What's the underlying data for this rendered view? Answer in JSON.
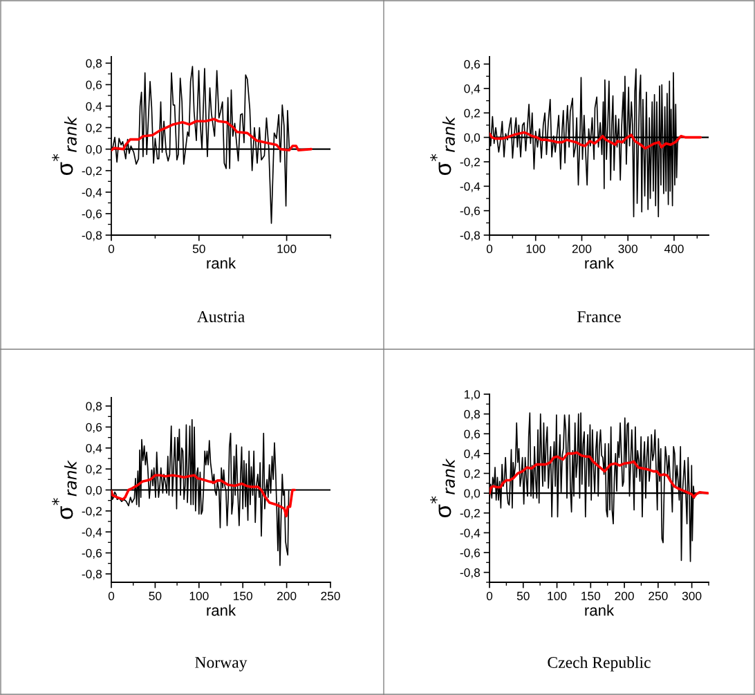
{
  "chart_data": [
    {
      "type": "line",
      "title": "Austria",
      "xlabel": "rank",
      "ylabel": "σ$^{*}$$_{rank}$",
      "xlim": [
        0,
        125
      ],
      "ylim": [
        -0.8,
        0.86
      ],
      "xticks": [
        0,
        {
          "value": 25,
          "label": null
        },
        50,
        {
          "value": 75,
          "label": null
        },
        100,
        {
          "value": 125,
          "label": null
        }
      ],
      "yticks": [
        {
          "value": -0.8,
          "label": "-0,8"
        },
        {
          "value": -0.7,
          "label": null
        },
        {
          "value": -0.6,
          "label": "-0,6"
        },
        {
          "value": -0.5,
          "label": null
        },
        {
          "value": -0.4,
          "label": "-0,4"
        },
        {
          "value": -0.3,
          "label": null
        },
        {
          "value": -0.2,
          "label": "-0,2"
        },
        {
          "value": -0.1,
          "label": null
        },
        {
          "value": 0,
          "label": "0,0"
        },
        {
          "value": 0.1,
          "label": null
        },
        {
          "value": 0.2,
          "label": "0,2"
        },
        {
          "value": 0.3,
          "label": null
        },
        {
          "value": 0.4,
          "label": "0,4"
        },
        {
          "value": 0.5,
          "label": null
        },
        {
          "value": 0.6,
          "label": "0,6"
        },
        {
          "value": 0.7,
          "label": null
        },
        {
          "value": 0.8,
          "label": "0,8"
        }
      ],
      "ref_lines": [
        {
          "axis": "y",
          "value": 0,
          "color": "#000000"
        }
      ],
      "series": [
        {
          "color": "#000000",
          "x": [
            0,
            0.9,
            2.0,
            3.2,
            4.4,
            5.6,
            6.5,
            8.2,
            9.3,
            10.2,
            11.2,
            12.8,
            14.2,
            15.5,
            16.4,
            17.2,
            18.1,
            19.2,
            20.2,
            22.1,
            23.0,
            24.1,
            25.0,
            26.3,
            27.1,
            28.2,
            29.0,
            30.0,
            31.3,
            32.4,
            33.3,
            34.3,
            35.3,
            36.1,
            37.4,
            38.2,
            39.3,
            40.3,
            41.3,
            43.5,
            44.3,
            45.2,
            46.3,
            47.2,
            48.5,
            49.9,
            50.8,
            51.7,
            53.2,
            54.1,
            54.8,
            56.2,
            57.1,
            58.9,
            60.2,
            61.4,
            62.3,
            63.4,
            64.4,
            65.5,
            66.5,
            67.5,
            68.4,
            69.3,
            70.4,
            72.4,
            73.7,
            74.7,
            75.7,
            76.6,
            77.6,
            79.0,
            80.3,
            81.6,
            82.3,
            83.2,
            84.5,
            85.6,
            87.3,
            88.5,
            89.8,
            91.3,
            92.9,
            94.2,
            95.5,
            96.4,
            97.5,
            98.5,
            99.6,
            100.5,
            101.5
          ],
          "values": [
            -0.02,
            0.02,
            0.11,
            -0.12,
            0.1,
            0.04,
            0.07,
            -0.09,
            0.09,
            -0.04,
            0.03,
            -0.03,
            -0.14,
            -0.09,
            0.4,
            0.53,
            -0.07,
            0.71,
            -0.05,
            0.63,
            0.39,
            -0.13,
            0.1,
            -0.09,
            -0.09,
            0.44,
            -0.03,
            0.26,
            -0.03,
            -0.11,
            -0.05,
            0.71,
            0.41,
            0.41,
            -0.1,
            -0.05,
            0.66,
            0.44,
            -0.14,
            0.16,
            0.12,
            0.63,
            0.77,
            0.35,
            0.08,
            0.73,
            0.22,
            0.0,
            0.75,
            0.22,
            -0.07,
            0.57,
            0.33,
            0.12,
            0.73,
            0.29,
            0.35,
            0.44,
            -0.13,
            -0.18,
            0.48,
            -0.18,
            0.55,
            0.12,
            0.24,
            -0.11,
            0.32,
            0.33,
            0.06,
            0.69,
            0.65,
            0.37,
            -0.2,
            0.2,
            0.07,
            -0.13,
            0.2,
            -0.1,
            -0.06,
            0.29,
            0.01,
            -0.69,
            0.15,
            0.1,
            0.32,
            -0.12,
            0.41,
            0.22,
            -0.53,
            0.36,
            0.0
          ]
        },
        {
          "color": "#ff0000",
          "x": [
            0,
            1.6,
            6.9,
            8.2,
            10.8,
            15.5,
            18.1,
            23.4,
            27.4,
            31.3,
            35.3,
            40.6,
            44.6,
            48.5,
            53.8,
            58.5,
            61.1,
            65.7,
            69.7,
            71.7,
            77.6,
            82.9,
            88.2,
            94.2,
            96.4,
            101.5,
            103.4,
            105.4,
            106.7,
            114.0
          ],
          "values": [
            -0.01,
            0.01,
            0.0,
            0.04,
            0.09,
            0.09,
            0.12,
            0.13,
            0.17,
            0.2,
            0.23,
            0.25,
            0.23,
            0.26,
            0.26,
            0.28,
            0.26,
            0.25,
            0.2,
            0.16,
            0.15,
            0.08,
            0.06,
            0.04,
            0.0,
            -0.01,
            0.03,
            0.03,
            -0.01,
            0.0
          ]
        }
      ]
    },
    {
      "type": "line",
      "title": "France",
      "xlabel": "rank",
      "ylabel": "σ$^{*}$$_{rank}$",
      "xlim": [
        0,
        475
      ],
      "ylim": [
        -0.8,
        0.66
      ],
      "xticks": [
        0,
        {
          "value": 50,
          "label": null
        },
        100,
        {
          "value": 150,
          "label": null
        },
        200,
        {
          "value": 250,
          "label": null
        },
        300,
        {
          "value": 350,
          "label": null
        },
        400,
        {
          "value": 450,
          "label": null
        }
      ],
      "yticks": [
        {
          "value": -0.8,
          "label": "-0,8"
        },
        {
          "value": -0.7,
          "label": null
        },
        {
          "value": -0.6,
          "label": "-0,6"
        },
        {
          "value": -0.5,
          "label": null
        },
        {
          "value": -0.4,
          "label": "-0,4"
        },
        {
          "value": -0.3,
          "label": null
        },
        {
          "value": -0.2,
          "label": "-0,2"
        },
        {
          "value": -0.1,
          "label": null
        },
        {
          "value": 0,
          "label": "0,0"
        },
        {
          "value": 0.1,
          "label": null
        },
        {
          "value": 0.2,
          "label": "0,2"
        },
        {
          "value": 0.3,
          "label": null
        },
        {
          "value": 0.4,
          "label": "0,4"
        },
        {
          "value": 0.5,
          "label": null
        },
        {
          "value": 0.6,
          "label": "0,6"
        }
      ],
      "ref_lines": [
        {
          "axis": "y",
          "value": 0,
          "color": "#000000"
        }
      ],
      "series": [
        {
          "color": "#000000",
          "x": [
            0,
            2.5,
            6.5,
            10,
            13.5,
            16.5,
            20,
            23.5,
            27.5,
            31.5,
            35,
            39,
            43.5,
            46.5,
            50,
            53.5,
            57.5,
            60.5,
            63.5,
            67.5,
            71.5,
            75,
            78.5,
            81.5,
            85.5,
            89,
            92.5,
            96.5,
            100,
            104,
            108.5,
            112.5,
            116.5,
            120,
            123.5,
            127.5,
            131.5,
            135,
            139,
            142.5,
            146.5,
            150,
            154,
            157.5,
            160,
            163.5,
            166.5,
            169,
            172.5,
            175,
            180,
            182.5,
            186.5,
            189,
            192.5,
            196.5,
            198.5,
            201.5,
            205,
            208.5,
            211.5,
            215,
            218.5,
            222.5,
            226.5,
            228.5,
            232.5,
            236,
            240,
            243.5,
            246.5,
            248.5,
            250,
            253.5,
            256.5,
            259,
            262.5,
            265,
            267.5,
            270,
            273.5,
            276.5,
            280,
            283.5,
            286.5,
            290,
            292.5,
            293.5,
            296.5,
            301.5,
            303.5,
            307.5,
            310,
            312.5,
            315,
            317.5,
            320,
            325,
            327.5,
            330,
            332.5,
            336.5,
            340,
            343.5,
            346.5,
            348.5,
            352.5,
            355,
            357.5,
            360,
            362.5,
            366,
            368.5,
            371.5,
            373.5,
            377.5,
            380,
            382.5,
            385,
            387.5,
            390,
            391.5,
            393.5,
            396.5,
            398.5,
            401.5,
            403.5,
            405.5,
            407.5,
            410
          ],
          "values": [
            0.02,
            -0.07,
            0.17,
            -0.05,
            0.08,
            -0.01,
            -0.12,
            -0.03,
            0.13,
            -0.16,
            0.03,
            -0.02,
            0.1,
            0.16,
            -0.17,
            0.02,
            0.16,
            -0.08,
            0.1,
            -0.16,
            0.1,
            0.12,
            -0.11,
            0.05,
            0.27,
            -0.05,
            0.2,
            -0.26,
            0.05,
            -0.08,
            0.07,
            -0.17,
            0.1,
            0.2,
            -0.14,
            0.13,
            0.31,
            -0.16,
            0.01,
            -0.12,
            0.03,
            0.18,
            -0.26,
            0.07,
            0.22,
            -0.21,
            0.1,
            0.26,
            -0.08,
            0.21,
            0.32,
            -0.16,
            -0.07,
            0.16,
            -0.39,
            0.07,
            0.49,
            -0.18,
            0.18,
            -0.14,
            -0.39,
            0.07,
            -0.07,
            0.16,
            -0.18,
            0.24,
            0.33,
            -0.08,
            0.12,
            -0.14,
            0.29,
            -0.42,
            0.47,
            -0.18,
            0.13,
            0.46,
            -0.35,
            0.1,
            0.34,
            -0.27,
            0.18,
            -0.08,
            0.15,
            -0.35,
            0.1,
            0.37,
            -0.05,
            0.5,
            -0.22,
            0.41,
            -0.07,
            0.29,
            0.1,
            -0.65,
            0.38,
            0.56,
            -0.54,
            0.34,
            0.51,
            -0.61,
            0.31,
            -0.48,
            0.37,
            -0.59,
            0.16,
            -0.5,
            0.29,
            -0.44,
            0.35,
            -0.56,
            0.29,
            -0.65,
            0.42,
            -0.39,
            0.43,
            -0.46,
            0.25,
            -0.44,
            0.36,
            -0.55,
            0.46,
            -0.44,
            0.23,
            -0.56,
            0.53,
            -0.39,
            0.27,
            -0.33,
            -0.05,
            0.0
          ]
        },
        {
          "color": "#ff0000",
          "x": [
            0,
            5,
            12.5,
            27.5,
            37.5,
            52.5,
            75,
            82.5,
            92.5,
            102.5,
            112.5,
            122.5,
            137.5,
            147.5,
            157.5,
            167.5,
            177.5,
            187.5,
            197.5,
            207.5,
            217.5,
            227.5,
            237.5,
            245,
            252.5,
            262.5,
            272.5,
            277.5,
            287.5,
            295,
            307.5,
            315,
            327.5,
            337.5,
            347.5,
            357.5,
            367.5,
            372.5,
            382.5,
            392.5,
            402.5,
            410,
            415,
            425,
            457.5
          ],
          "values": [
            0.03,
            0.0,
            -0.01,
            -0.01,
            0.0,
            0.02,
            0.04,
            0.03,
            0.01,
            0.0,
            -0.02,
            -0.02,
            -0.03,
            -0.04,
            -0.04,
            -0.02,
            -0.03,
            -0.04,
            -0.06,
            -0.07,
            -0.03,
            -0.05,
            -0.02,
            0.01,
            -0.02,
            -0.04,
            -0.06,
            -0.03,
            -0.04,
            -0.01,
            0.02,
            -0.03,
            -0.06,
            -0.09,
            -0.07,
            -0.05,
            -0.04,
            -0.08,
            -0.05,
            -0.06,
            -0.04,
            -0.01,
            0.01,
            0.0,
            0.0
          ]
        }
      ]
    },
    {
      "type": "line",
      "title": "Norway",
      "xlabel": "rank",
      "ylabel": "σ$^{*}$$_{rank}$",
      "xlim": [
        0,
        250
      ],
      "ylim": [
        -0.88,
        0.88
      ],
      "xticks": [
        0,
        {
          "value": 25,
          "label": null
        },
        50,
        {
          "value": 75,
          "label": null
        },
        100,
        {
          "value": 125,
          "label": null
        },
        150,
        {
          "value": 175,
          "label": null
        },
        200,
        {
          "value": 225,
          "label": null
        },
        250
      ],
      "yticks": [
        {
          "value": -0.8,
          "label": "-0,8"
        },
        {
          "value": -0.7,
          "label": null
        },
        {
          "value": -0.6,
          "label": "-0,6"
        },
        {
          "value": -0.5,
          "label": null
        },
        {
          "value": -0.4,
          "label": "-0,4"
        },
        {
          "value": -0.3,
          "label": null
        },
        {
          "value": -0.2,
          "label": "-0,2"
        },
        {
          "value": -0.1,
          "label": null
        },
        {
          "value": 0,
          "label": "0,0"
        },
        {
          "value": 0.1,
          "label": null
        },
        {
          "value": 0.2,
          "label": "0,2"
        },
        {
          "value": 0.3,
          "label": null
        },
        {
          "value": 0.4,
          "label": "0,4"
        },
        {
          "value": 0.5,
          "label": null
        },
        {
          "value": 0.6,
          "label": "0,6"
        },
        {
          "value": 0.7,
          "label": null
        },
        {
          "value": 0.8,
          "label": "0,8"
        }
      ],
      "ref_lines": [
        {
          "axis": "y",
          "value": 0,
          "color": "#000000"
        }
      ],
      "series": [
        {
          "color": "#000000",
          "x": [
            0,
            1.3,
            2.6,
            3.9,
            5.3,
            6.6,
            9.2,
            11.8,
            14.5,
            17.1,
            19.7,
            21.8,
            23.7,
            26.3,
            27.6,
            28.9,
            30.3,
            31.6,
            32.4,
            33.7,
            34.7,
            36.1,
            37.6,
            38.9,
            40.3,
            41.6,
            43.4,
            44.7,
            46.1,
            47.4,
            48.7,
            50.5,
            51.8,
            53.9,
            55.3,
            56.6,
            58.7,
            60.0,
            61.8,
            63.2,
            64.5,
            65.8,
            67.1,
            68.4,
            69.7,
            71.1,
            72.4,
            73.7,
            74.5,
            75.5,
            76.6,
            77.6,
            78.9,
            80.3,
            81.6,
            82.9,
            84.2,
            85.5,
            86.8,
            88.2,
            89.5,
            90.8,
            92.1,
            93.4,
            94.7,
            96.1,
            97.4,
            98.7,
            100.0,
            101.3,
            102.6,
            103.9,
            105.3,
            106.6,
            107.9,
            109.2,
            110.5,
            111.8,
            113.2,
            114.5,
            115.8,
            117.1,
            118.4,
            119.7,
            121.1,
            122.9,
            124.2,
            125.5,
            127.1,
            128.2,
            129.5,
            130.8,
            132.1,
            133.4,
            134.7,
            136.1,
            137.4,
            138.7,
            140.0,
            141.3,
            142.6,
            144.2,
            145.8,
            147.4,
            148.7,
            150.0,
            151.3,
            153.2,
            153.9,
            155.8,
            157.1,
            158.4,
            159.7,
            161.3,
            162.6,
            164.2,
            165.5,
            167.1,
            168.7,
            169.7,
            171.1,
            172.4,
            173.7,
            175.0,
            176.3,
            177.6,
            178.9,
            180.3,
            181.8,
            183.4,
            184.7,
            186.1,
            187.4,
            188.7,
            190.0,
            191.1,
            192.4,
            193.7,
            195.0,
            196.1,
            197.4,
            198.7,
            200.3,
            201.3,
            202.4
          ],
          "values": [
            -0.01,
            -0.09,
            -0.07,
            -0.02,
            -0.04,
            -0.09,
            -0.08,
            -0.11,
            -0.09,
            -0.11,
            -0.15,
            -0.07,
            -0.12,
            -0.08,
            0.11,
            -0.14,
            0.18,
            -0.16,
            0.38,
            -0.07,
            0.48,
            0.28,
            0.42,
            0.24,
            0.36,
            0.21,
            -0.08,
            0.06,
            0.19,
            0.04,
            0.21,
            -0.07,
            0.36,
            -0.07,
            0.04,
            0.21,
            -0.03,
            0.15,
            0.06,
            -0.03,
            0.32,
            -0.05,
            0.28,
            0.61,
            -0.06,
            0.21,
            0.5,
            0.15,
            -0.18,
            0.5,
            0.28,
            0.58,
            -0.05,
            0.4,
            0.37,
            -0.09,
            0.04,
            0.62,
            -0.12,
            0.21,
            0.61,
            -0.14,
            0.67,
            -0.14,
            0.6,
            -0.2,
            0.15,
            0.21,
            -0.23,
            0.17,
            -0.23,
            -0.2,
            0.02,
            0.37,
            0.24,
            0.37,
            0.24,
            0.47,
            0.26,
            0.17,
            0.06,
            0.15,
            -0.01,
            -0.05,
            0.08,
            -0.01,
            -0.36,
            0.21,
            0.02,
            0.19,
            0.04,
            -0.01,
            -0.34,
            -0.07,
            0.41,
            0.54,
            -0.23,
            -0.12,
            0.32,
            -0.05,
            0.43,
            -0.01,
            -0.34,
            0.13,
            0.41,
            -0.18,
            0.28,
            -0.16,
            0.25,
            -0.29,
            0.37,
            -0.14,
            0.22,
            -0.05,
            0.37,
            -0.31,
            0.04,
            0.15,
            -0.07,
            0.26,
            -0.44,
            -0.01,
            0.54,
            -0.18,
            -0.01,
            0.1,
            -0.07,
            0.24,
            -0.03,
            0.32,
            0.1,
            0.45,
            0.19,
            -0.18,
            -0.58,
            -0.12,
            -0.72,
            -0.25,
            0.15,
            -0.05,
            -0.01,
            -0.49,
            -0.58,
            -0.62,
            -0.01
          ]
        },
        {
          "color": "#ff0000",
          "x": [
            0,
            1.3,
            6.6,
            13.2,
            15.8,
            19.7,
            22.4,
            28.9,
            35.5,
            40.8,
            44.7,
            50.0,
            55.3,
            61.8,
            69.7,
            77.6,
            82.9,
            88.2,
            94.7,
            98.7,
            103.9,
            111.8,
            117.1,
            121.1,
            125.0,
            132.9,
            140.8,
            148.7,
            153.9,
            159.2,
            164.5,
            167.1,
            171.1,
            175.0,
            180.3,
            188.2,
            193.4,
            197.4,
            199.5,
            201.3,
            203.9,
            206.6,
            209.2
          ],
          "values": [
            -0.01,
            -0.05,
            -0.07,
            -0.09,
            -0.07,
            0.0,
            0.01,
            0.04,
            0.08,
            0.09,
            0.1,
            0.14,
            0.14,
            0.13,
            0.14,
            0.13,
            0.12,
            0.13,
            0.14,
            0.11,
            0.1,
            0.08,
            0.07,
            0.09,
            0.09,
            0.05,
            0.04,
            0.06,
            0.04,
            0.03,
            0.03,
            0.03,
            0.0,
            -0.06,
            -0.12,
            -0.14,
            -0.16,
            -0.18,
            -0.25,
            -0.16,
            -0.16,
            0.0,
            0.0
          ]
        }
      ]
    },
    {
      "type": "line",
      "title": "Czech Republic",
      "xlabel": "rank",
      "ylabel": "σ$^{*}$$_{rank}$",
      "xlim": [
        0,
        325
      ],
      "ylim": [
        -0.9,
        1.0
      ],
      "xticks": [
        0,
        {
          "value": 25,
          "label": null
        },
        50,
        {
          "value": 75,
          "label": null
        },
        100,
        {
          "value": 125,
          "label": null
        },
        150,
        {
          "value": 175,
          "label": null
        },
        200,
        {
          "value": 225,
          "label": null
        },
        250,
        {
          "value": 275,
          "label": null
        },
        300,
        {
          "value": 325,
          "label": null
        }
      ],
      "yticks": [
        {
          "value": -0.9,
          "label": null
        },
        {
          "value": -0.8,
          "label": "-0,8"
        },
        {
          "value": -0.7,
          "label": null
        },
        {
          "value": -0.6,
          "label": "-0,6"
        },
        {
          "value": -0.5,
          "label": null
        },
        {
          "value": -0.4,
          "label": "-0,4"
        },
        {
          "value": -0.3,
          "label": null
        },
        {
          "value": -0.2,
          "label": "-0,2"
        },
        {
          "value": -0.1,
          "label": null
        },
        {
          "value": 0,
          "label": "0,0"
        },
        {
          "value": 0.1,
          "label": null
        },
        {
          "value": 0.2,
          "label": "0,2"
        },
        {
          "value": 0.3,
          "label": null
        },
        {
          "value": 0.4,
          "label": "0,4"
        },
        {
          "value": 0.5,
          "label": null
        },
        {
          "value": 0.6,
          "label": "0,6"
        },
        {
          "value": 0.7,
          "label": null
        },
        {
          "value": 0.8,
          "label": "0,8"
        },
        {
          "value": 0.9,
          "label": null
        },
        {
          "value": 1.0,
          "label": "1,0"
        }
      ],
      "ref_lines": [
        {
          "axis": "y",
          "value": 0,
          "color": "#000000"
        }
      ],
      "series": [
        {
          "color": "#000000",
          "x": [
            0.0,
            1.7,
            3.4,
            4.8,
            6.9,
            8.2,
            9.9,
            11.7,
            13.4,
            15.1,
            16.8,
            18.6,
            20.3,
            22.0,
            23.7,
            25.8,
            27.5,
            29.2,
            30.9,
            32.3,
            33.7,
            35.1,
            36.4,
            38.5,
            40.2,
            41.9,
            43.6,
            45.4,
            47.1,
            48.8,
            50.9,
            52.9,
            54.3,
            56.4,
            58.1,
            59.8,
            61.5,
            63.2,
            64.9,
            66.7,
            68.4,
            70.1,
            71.8,
            73.5,
            75.6,
            77.3,
            79.0,
            80.4,
            82.1,
            83.8,
            85.6,
            87.3,
            89.0,
            90.7,
            92.4,
            94.2,
            95.9,
            97.6,
            99.3,
            101.0,
            102.7,
            104.5,
            106.2,
            107.9,
            109.6,
            111.3,
            113.1,
            114.8,
            116.5,
            118.2,
            119.9,
            121.6,
            123.4,
            125.1,
            126.8,
            128.5,
            130.2,
            132.0,
            133.7,
            135.4,
            137.1,
            138.8,
            140.5,
            142.3,
            144.0,
            145.7,
            147.4,
            149.1,
            150.9,
            152.6,
            154.3,
            156.0,
            157.7,
            159.5,
            161.2,
            162.9,
            164.6,
            166.3,
            168.0,
            169.8,
            171.5,
            173.2,
            174.9,
            176.6,
            178.4,
            180.1,
            181.8,
            183.5,
            185.2,
            186.9,
            188.7,
            190.4,
            192.1,
            193.8,
            195.5,
            197.3,
            199.0,
            200.7,
            202.4,
            204.1,
            205.8,
            207.6,
            209.3,
            211.0,
            212.7,
            214.4,
            216.2,
            217.9,
            219.6,
            221.3,
            223.0,
            224.7,
            226.5,
            228.2,
            229.9,
            231.6,
            233.3,
            235.1,
            236.8,
            238.5,
            240.2,
            241.9,
            243.6,
            245.4,
            247.1,
            248.8,
            250.5,
            252.2,
            254.0,
            255.7,
            257.4,
            259.1,
            260.8,
            262.5,
            264.3,
            266.0,
            267.7,
            269.4,
            271.1,
            272.9,
            274.6,
            276.3,
            278.0,
            279.7,
            281.4,
            283.2,
            284.5,
            285.9,
            287.6,
            289.3,
            291.1,
            292.8,
            294.5,
            296.2,
            297.9,
            299.7,
            300.7,
            302.4,
            303.8
          ],
          "values": [
            -0.07,
            0.09,
            -0.05,
            0.16,
            0.07,
            0.26,
            -0.07,
            0.16,
            -0.07,
            0.12,
            -0.15,
            0.29,
            0.07,
            0.12,
            0.36,
            0.02,
            -0.1,
            -0.12,
            0.14,
            0.44,
            -0.15,
            0.31,
            0.16,
            0.28,
            0.71,
            0.31,
            0.45,
            0.07,
            0.16,
            0.36,
            -0.11,
            0.36,
            0.19,
            -0.03,
            0.57,
            0.81,
            -0.03,
            0.28,
            -0.05,
            0.47,
            0.14,
            -0.05,
            0.64,
            -0.1,
            0.8,
            0.36,
            0.07,
            0.71,
            0.12,
            0.5,
            0.67,
            0.05,
            0.28,
            0.47,
            -0.24,
            0.28,
            0.52,
            0.07,
            0.79,
            -0.24,
            0.31,
            0.59,
            0.0,
            0.38,
            0.45,
            0.79,
            0.64,
            -0.05,
            0.5,
            0.79,
            0.05,
            -0.19,
            0.43,
            -0.03,
            0.71,
            0.16,
            0.31,
            0.8,
            -0.05,
            0.81,
            0.09,
            0.5,
            0.62,
            -0.24,
            0.31,
            0.59,
            0.07,
            0.69,
            -0.07,
            0.64,
            0.26,
            0.0,
            0.43,
            0.62,
            -0.03,
            0.47,
            0.64,
            0.38,
            0.36,
            0.19,
            0.5,
            -0.17,
            -0.24,
            0.5,
            -0.17,
            0.67,
            -0.17,
            -0.31,
            0.16,
            0.4,
            0.02,
            0.52,
            0.36,
            0.71,
            0.4,
            0.07,
            0.12,
            0.76,
            0.26,
            0.69,
            0.71,
            -0.03,
            0.31,
            0.64,
            0.28,
            -0.17,
            0.67,
            0.16,
            0.43,
            0.33,
            0.12,
            0.57,
            -0.24,
            0.31,
            0.52,
            -0.05,
            0.36,
            0.57,
            0.12,
            0.24,
            0.59,
            0.33,
            0.4,
            0.64,
            0.24,
            -0.17,
            0.55,
            0.12,
            0.45,
            -0.46,
            -0.5,
            0.07,
            0.47,
            0.36,
            0.16,
            0.38,
            0.16,
            0.12,
            -0.19,
            0.47,
            0.4,
            0.07,
            0.28,
            0.12,
            -0.07,
            0.47,
            -0.68,
            -0.03,
            0.16,
            0.33,
            0.0,
            -0.31,
            0.36,
            0.0,
            -0.69,
            0.28,
            -0.48,
            0.07,
            -0.05
          ]
        },
        {
          "color": "#ff0000",
          "x": [
            0,
            2.4,
            5.8,
            11.0,
            16.2,
            19.6,
            24.7,
            29.9,
            35.1,
            41.9,
            48.8,
            55.7,
            62.5,
            69.4,
            76.3,
            83.2,
            90.0,
            95.2,
            100.3,
            108.9,
            115.8,
            122.7,
            129.6,
            136.4,
            143.3,
            148.5,
            153.6,
            160.5,
            170.8,
            179.4,
            186.3,
            193.1,
            200.0,
            210.3,
            213.7,
            220.6,
            227.5,
            234.4,
            242.9,
            248.1,
            253.3,
            258.4,
            263.6,
            268.7,
            273.9,
            279.0,
            285.9,
            292.8,
            299.7,
            303.1,
            306.5,
            311.7,
            323.7
          ],
          "values": [
            0.0,
            0.06,
            0.07,
            0.06,
            0.06,
            0.1,
            0.13,
            0.13,
            0.15,
            0.2,
            0.22,
            0.26,
            0.25,
            0.29,
            0.29,
            0.29,
            0.31,
            0.36,
            0.37,
            0.34,
            0.4,
            0.4,
            0.41,
            0.38,
            0.37,
            0.37,
            0.32,
            0.28,
            0.22,
            0.29,
            0.3,
            0.28,
            0.3,
            0.31,
            0.32,
            0.26,
            0.25,
            0.24,
            0.22,
            0.22,
            0.18,
            0.19,
            0.18,
            0.12,
            0.07,
            0.05,
            0.03,
            0.01,
            -0.01,
            -0.04,
            -0.01,
            0.01,
            0.0
          ]
        }
      ]
    }
  ]
}
